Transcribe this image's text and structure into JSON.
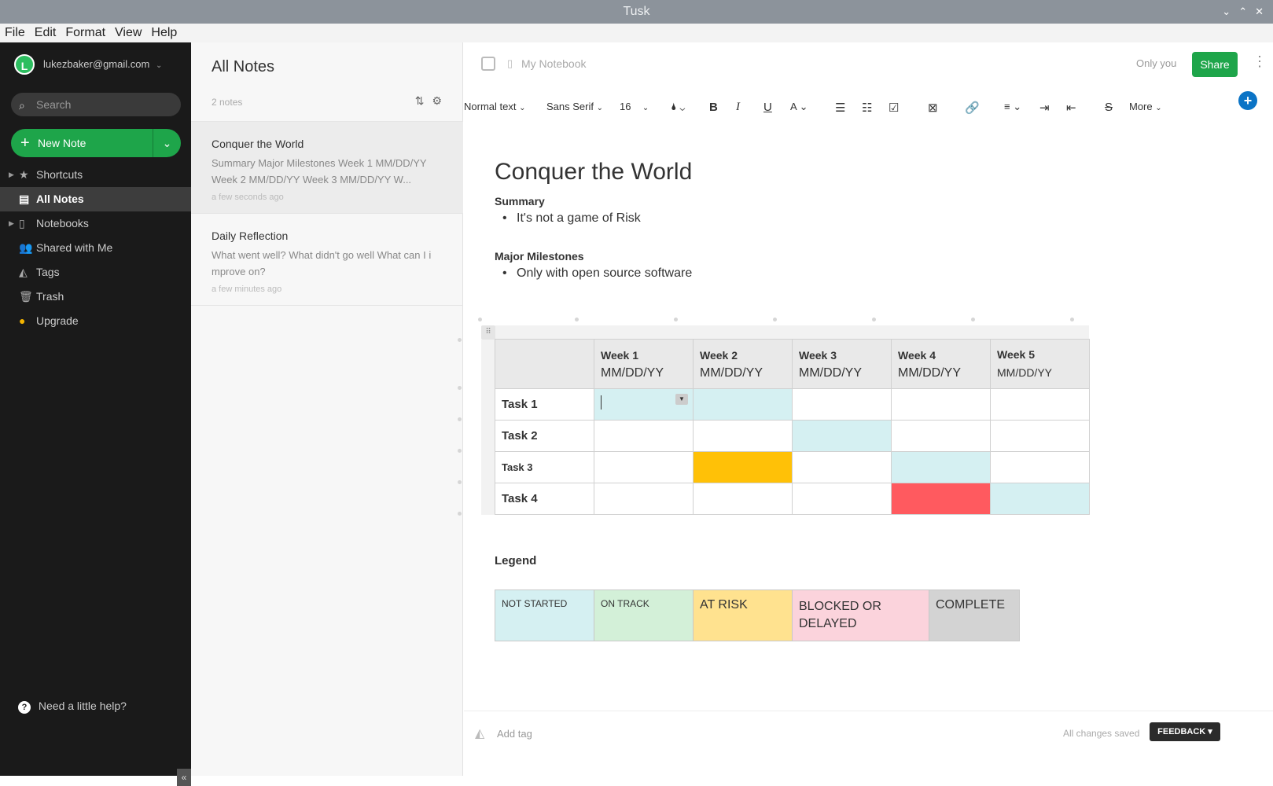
{
  "window": {
    "title": "Tusk",
    "controls": [
      "⌄",
      "⌃",
      "✕"
    ]
  },
  "menu": [
    "File",
    "Edit",
    "Format",
    "View",
    "Help"
  ],
  "sidebar": {
    "user": "lukezbaker@gmail.com",
    "avatar_letter": "L",
    "search_placeholder": "Search",
    "new_note": "New Note",
    "items": [
      {
        "label": "Shortcuts",
        "icon": "star-icon"
      },
      {
        "label": "All Notes",
        "icon": "notes-icon"
      },
      {
        "label": "Notebooks",
        "icon": "notebook-icon"
      },
      {
        "label": "Shared with Me",
        "icon": "people-icon"
      },
      {
        "label": "Tags",
        "icon": "tag-icon"
      },
      {
        "label": "Trash",
        "icon": "trash-icon"
      },
      {
        "label": "Upgrade",
        "icon": "upgrade-icon"
      }
    ],
    "help": "Need a little help?"
  },
  "notelist": {
    "title": "All Notes",
    "count": "2 notes",
    "notes": [
      {
        "title": "Conquer the World",
        "snippet": "Summary Major Milestones Week 1 MM/DD/YY Week 2 MM/DD/YY Week 3 MM/DD/YY W...",
        "date": "a few seconds ago"
      },
      {
        "title": "Daily Reflection",
        "snippet": "What went well? What didn't go well What can I i mprove on?",
        "date": "a few minutes ago"
      }
    ]
  },
  "editor": {
    "notebook": "My Notebook",
    "visibility": "Only you",
    "share": "Share",
    "toolbar": {
      "style": "Normal text",
      "font": "Sans Serif",
      "size": "16",
      "more": "More"
    },
    "title": "Conquer the World",
    "summary_heading": "Summary",
    "summary_bullet": "It's not a game of Risk",
    "milestones_heading": "Major Milestones",
    "milestones_bullet": "Only with open source software",
    "table": {
      "weeks": [
        {
          "label": "Week 1",
          "date": "MM/DD/YY"
        },
        {
          "label": "Week 2",
          "date": "MM/DD/YY"
        },
        {
          "label": "Week 3",
          "date": "MM/DD/YY"
        },
        {
          "label": "Week 4",
          "date": "MM/DD/YY"
        },
        {
          "label": "Week 5",
          "date": "MM/DD/YY"
        }
      ],
      "tasks": [
        "Task 1",
        "Task 2",
        "Task 3",
        "Task 4"
      ]
    },
    "legend_heading": "Legend",
    "legend": [
      {
        "label": "NOT STARTED",
        "color": "#d5f0f2"
      },
      {
        "label": "ON TRACK",
        "color": "#d3f0d8"
      },
      {
        "label": "AT RISK",
        "color": "#ffe28f"
      },
      {
        "label": "BLOCKED OR DELAYED",
        "color": "#fbd3dc"
      },
      {
        "label": "COMPLETE",
        "color": "#d3d3d3"
      }
    ],
    "add_tag": "Add tag",
    "status": "All changes saved",
    "feedback": "FEEDBACK ▾"
  }
}
